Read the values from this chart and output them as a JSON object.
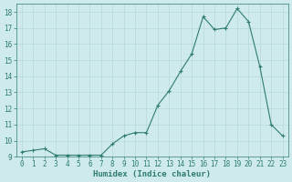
{
  "x": [
    0,
    1,
    2,
    3,
    4,
    5,
    6,
    7,
    8,
    9,
    10,
    11,
    12,
    13,
    14,
    15,
    16,
    17,
    18,
    19,
    20,
    21,
    22,
    23
  ],
  "y": [
    9.3,
    9.4,
    9.5,
    9.1,
    9.1,
    9.1,
    9.1,
    9.1,
    9.8,
    10.3,
    10.5,
    10.5,
    12.2,
    13.1,
    14.3,
    15.4,
    17.7,
    16.9,
    17.0,
    18.2,
    17.4,
    14.6,
    11.0,
    10.3
  ],
  "line_color": "#2e7d6e",
  "marker": "+",
  "marker_size": 3,
  "bg_color": "#ceeaea",
  "grid_color": "#b8d8d8",
  "xlabel": "Humidex (Indice chaleur)",
  "xlim": [
    -0.5,
    23.5
  ],
  "ylim": [
    9.0,
    18.5
  ],
  "yticks": [
    9,
    10,
    11,
    12,
    13,
    14,
    15,
    16,
    17,
    18
  ],
  "xticks": [
    0,
    1,
    2,
    3,
    4,
    5,
    6,
    7,
    8,
    9,
    10,
    11,
    12,
    13,
    14,
    15,
    16,
    17,
    18,
    19,
    20,
    21,
    22,
    23
  ],
  "label_fontsize": 6.5,
  "tick_fontsize": 5.5
}
